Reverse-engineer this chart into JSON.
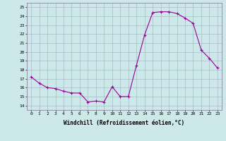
{
  "hours": [
    0,
    1,
    2,
    3,
    4,
    5,
    6,
    7,
    8,
    9,
    10,
    11,
    12,
    13,
    14,
    15,
    16,
    17,
    18,
    19,
    20,
    21,
    22,
    23
  ],
  "temps": [
    17.2,
    16.5,
    16.0,
    15.9,
    15.6,
    15.4,
    15.4,
    14.4,
    14.5,
    14.4,
    16.1,
    15.0,
    15.0,
    18.5,
    21.9,
    24.4,
    24.5,
    24.5,
    24.3,
    23.8,
    23.2,
    20.2,
    19.3,
    18.2
  ],
  "line_color": "#990099",
  "bg_color": "#cce8e8",
  "grid_color": "#aabbcc",
  "xlabel": "Windchill (Refroidissement éolien,°C)",
  "ylabel_ticks": [
    14,
    15,
    16,
    17,
    18,
    19,
    20,
    21,
    22,
    23,
    24,
    25
  ],
  "ylim": [
    13.5,
    25.5
  ],
  "xlim": [
    -0.5,
    23.5
  ],
  "marker": "+"
}
